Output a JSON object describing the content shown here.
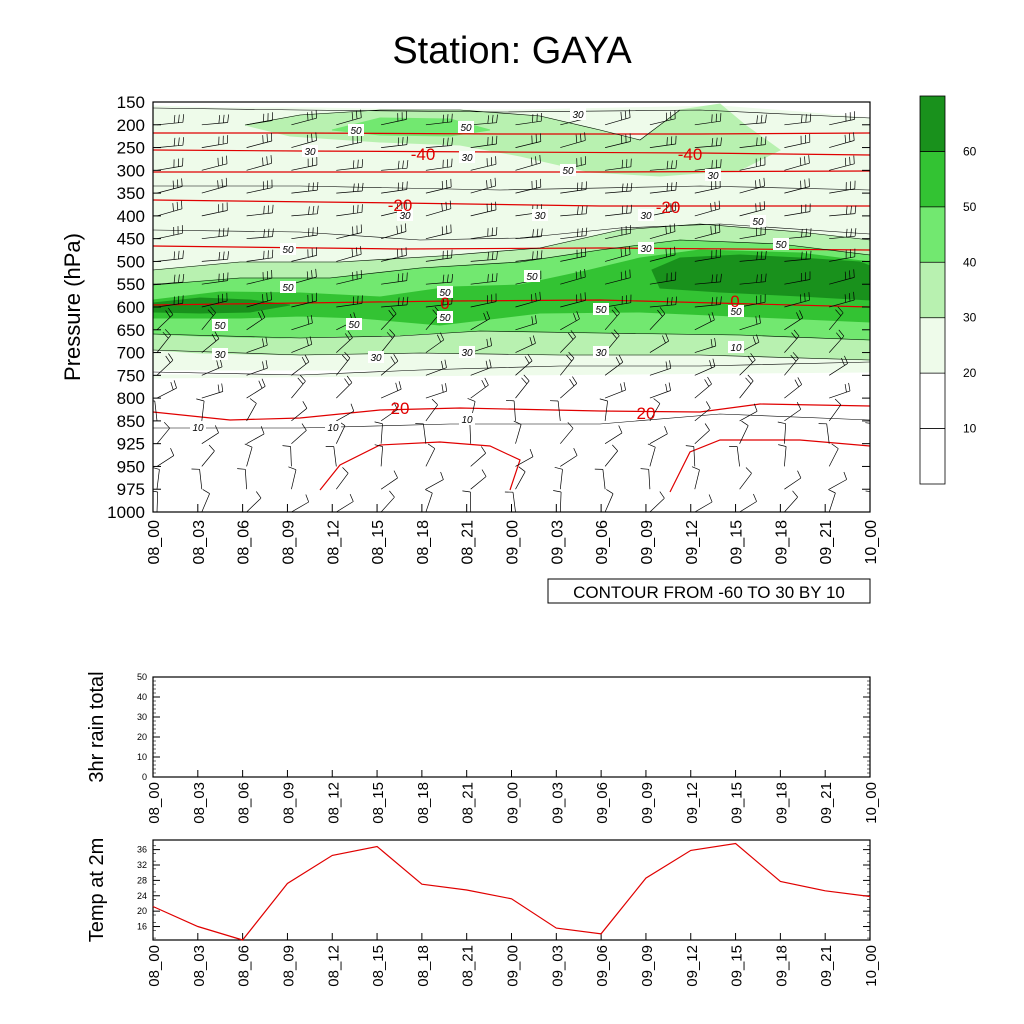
{
  "title": "Station: GAYA",
  "time_labels": [
    "08_00",
    "08_03",
    "08_06",
    "08_09",
    "08_12",
    "08_15",
    "08_18",
    "08_21",
    "09_00",
    "09_03",
    "09_06",
    "09_09",
    "09_12",
    "09_15",
    "09_18",
    "09_21",
    "10_00"
  ],
  "chart_data": [
    {
      "type": "heatmap",
      "ylabel": "Pressure (hPa)",
      "y_levels": [
        150,
        200,
        250,
        300,
        350,
        400,
        450,
        500,
        550,
        600,
        650,
        700,
        750,
        800,
        850,
        925,
        950,
        975,
        1000
      ],
      "colorbar": {
        "levels": [
          10,
          20,
          30,
          40,
          50,
          60
        ],
        "colors": [
          "#ffffff",
          "#ffffff",
          "#eefbea",
          "#b8f1b0",
          "#72e870",
          "#33c333",
          "#19911c"
        ]
      },
      "contour_info": "CONTOUR FROM -60 TO 30 BY 10",
      "accent_color": "#e00000",
      "humidity_contour_labels": [
        "50",
        "50",
        "30",
        "30",
        "30",
        "50",
        "30",
        "30",
        "30",
        "30",
        "50",
        "50",
        "30",
        "50",
        "50",
        "50",
        "50",
        "50",
        "50",
        "50",
        "50",
        "50",
        "30",
        "30",
        "30",
        "30",
        "10",
        "10",
        "10",
        "10"
      ],
      "temperature_contour_labels": [
        "-40",
        "-40",
        "-20",
        "-20",
        "0",
        "0",
        "20",
        "20"
      ],
      "grid": false
    },
    {
      "type": "line",
      "ylabel": "3hr rain total",
      "ylim": [
        0,
        50
      ],
      "yticks": [
        0,
        10,
        20,
        30,
        40,
        50
      ],
      "series": [
        {
          "values": [
            0,
            0,
            0,
            0,
            0,
            0,
            0,
            0,
            0,
            0,
            0,
            0,
            0,
            0,
            0,
            0,
            0
          ]
        }
      ]
    },
    {
      "type": "line",
      "ylabel": "Temp at 2m",
      "ylim": [
        12.5,
        38.5
      ],
      "yticks": [
        16,
        20,
        24,
        28,
        32,
        36
      ],
      "color": "#e00000",
      "series": [
        {
          "values": [
            21.2,
            16,
            12.5,
            27.2,
            34.5,
            36.8,
            27,
            25.5,
            23.2,
            15.6,
            14.1,
            28.6,
            35.8,
            37.6,
            27.7,
            25.3,
            23.8
          ]
        }
      ]
    }
  ]
}
